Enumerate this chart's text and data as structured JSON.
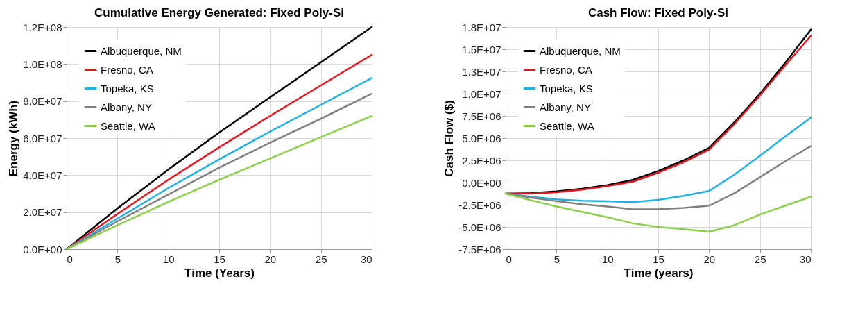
{
  "chart_data": [
    {
      "type": "line",
      "title": "Cumulative Energy Generated: Fixed Poly-Si",
      "xlabel": "Time (Years)",
      "ylabel": "Energy (kWh)",
      "xlim": [
        0,
        30
      ],
      "xticks": [
        0,
        5,
        10,
        15,
        20,
        25,
        30
      ],
      "ylim": [
        0,
        120000000
      ],
      "yticks": [
        {
          "value": 0,
          "label": "0.0E+00"
        },
        {
          "value": 20000000,
          "label": "2.0E+07"
        },
        {
          "value": 40000000,
          "label": "4.0E+07"
        },
        {
          "value": 60000000,
          "label": "6.0E+07"
        },
        {
          "value": 80000000,
          "label": "8.0E+07"
        },
        {
          "value": 100000000,
          "label": "1.0E+08"
        },
        {
          "value": 120000000,
          "label": "1.2E+08"
        }
      ],
      "grid": true,
      "legend": "top left",
      "x": [
        0,
        5,
        10,
        15,
        20,
        25,
        30
      ],
      "series": [
        {
          "name": "Albuquerque, NM",
          "color": "#000000",
          "values": [
            0,
            22000000,
            43000000,
            63000000,
            82000000,
            101000000,
            120000000
          ]
        },
        {
          "name": "Fresno, CA",
          "color": "#e8141c",
          "values": [
            0,
            19000000,
            37500000,
            55000000,
            72000000,
            88500000,
            105000000
          ]
        },
        {
          "name": "Topeka, KS",
          "color": "#1fb1e6",
          "values": [
            0,
            16500000,
            33000000,
            48500000,
            63500000,
            78000000,
            92500000
          ]
        },
        {
          "name": "Albany, NY",
          "color": "#808080",
          "values": [
            0,
            15000000,
            29500000,
            44000000,
            57500000,
            70500000,
            84000000
          ]
        },
        {
          "name": "Seattle, WA",
          "color": "#8ccf4d",
          "values": [
            0,
            13000000,
            25500000,
            37500000,
            49000000,
            60500000,
            72000000
          ]
        }
      ]
    },
    {
      "type": "line",
      "title": "Cash Flow: Fixed Poly-Si",
      "xlabel": "Time (years)",
      "ylabel": "Cash Flow ($)",
      "xlim": [
        0,
        30
      ],
      "xticks": [
        0,
        5,
        10,
        15,
        20,
        25,
        30
      ],
      "ylim": [
        -7500000,
        17500000
      ],
      "yticks": [
        {
          "value": -7500000,
          "label": "-7.5E+06"
        },
        {
          "value": -5000000,
          "label": "-5.0E+06"
        },
        {
          "value": -2500000,
          "label": "-2.5E+06"
        },
        {
          "value": 0,
          "label": "0.0E+00"
        },
        {
          "value": 2500000,
          "label": "2.5E+06"
        },
        {
          "value": 5000000,
          "label": "5.0E+06"
        },
        {
          "value": 7500000,
          "label": "7.5E+06"
        },
        {
          "value": 10000000,
          "label": "1.0E+07"
        },
        {
          "value": 12500000,
          "label": "1.3E+07"
        },
        {
          "value": 15000000,
          "label": "1.5E+07"
        },
        {
          "value": 17500000,
          "label": "1.8E+07"
        }
      ],
      "grid": true,
      "legend": "top left",
      "x": [
        0,
        2.5,
        5,
        7.5,
        10,
        12.5,
        15,
        17.5,
        20,
        22.5,
        25,
        27.5,
        30
      ],
      "series": [
        {
          "name": "Albuquerque, NM",
          "color": "#000000",
          "values": [
            -1250000,
            -1200000,
            -1000000,
            -700000,
            -300000,
            300000,
            1300000,
            2500000,
            3900000,
            6800000,
            10000000,
            13500000,
            17200000
          ]
        },
        {
          "name": "Fresno, CA",
          "color": "#e8141c",
          "values": [
            -1250000,
            -1250000,
            -1100000,
            -800000,
            -400000,
            100000,
            1100000,
            2300000,
            3700000,
            6600000,
            9800000,
            13200000,
            16500000
          ]
        },
        {
          "name": "Topeka, KS",
          "color": "#1fb1e6",
          "values": [
            -1250000,
            -1600000,
            -1900000,
            -2050000,
            -2100000,
            -2200000,
            -1950000,
            -1500000,
            -950000,
            900000,
            3000000,
            5200000,
            7300000
          ]
        },
        {
          "name": "Albany, NY",
          "color": "#808080",
          "values": [
            -1250000,
            -1700000,
            -2100000,
            -2450000,
            -2700000,
            -3000000,
            -3000000,
            -2850000,
            -2600000,
            -1200000,
            600000,
            2400000,
            4100000
          ]
        },
        {
          "name": "Seattle, WA",
          "color": "#8ccf4d",
          "values": [
            -1250000,
            -2000000,
            -2700000,
            -3300000,
            -3900000,
            -4600000,
            -5000000,
            -5250000,
            -5550000,
            -4800000,
            -3600000,
            -2600000,
            -1600000
          ]
        }
      ]
    }
  ]
}
